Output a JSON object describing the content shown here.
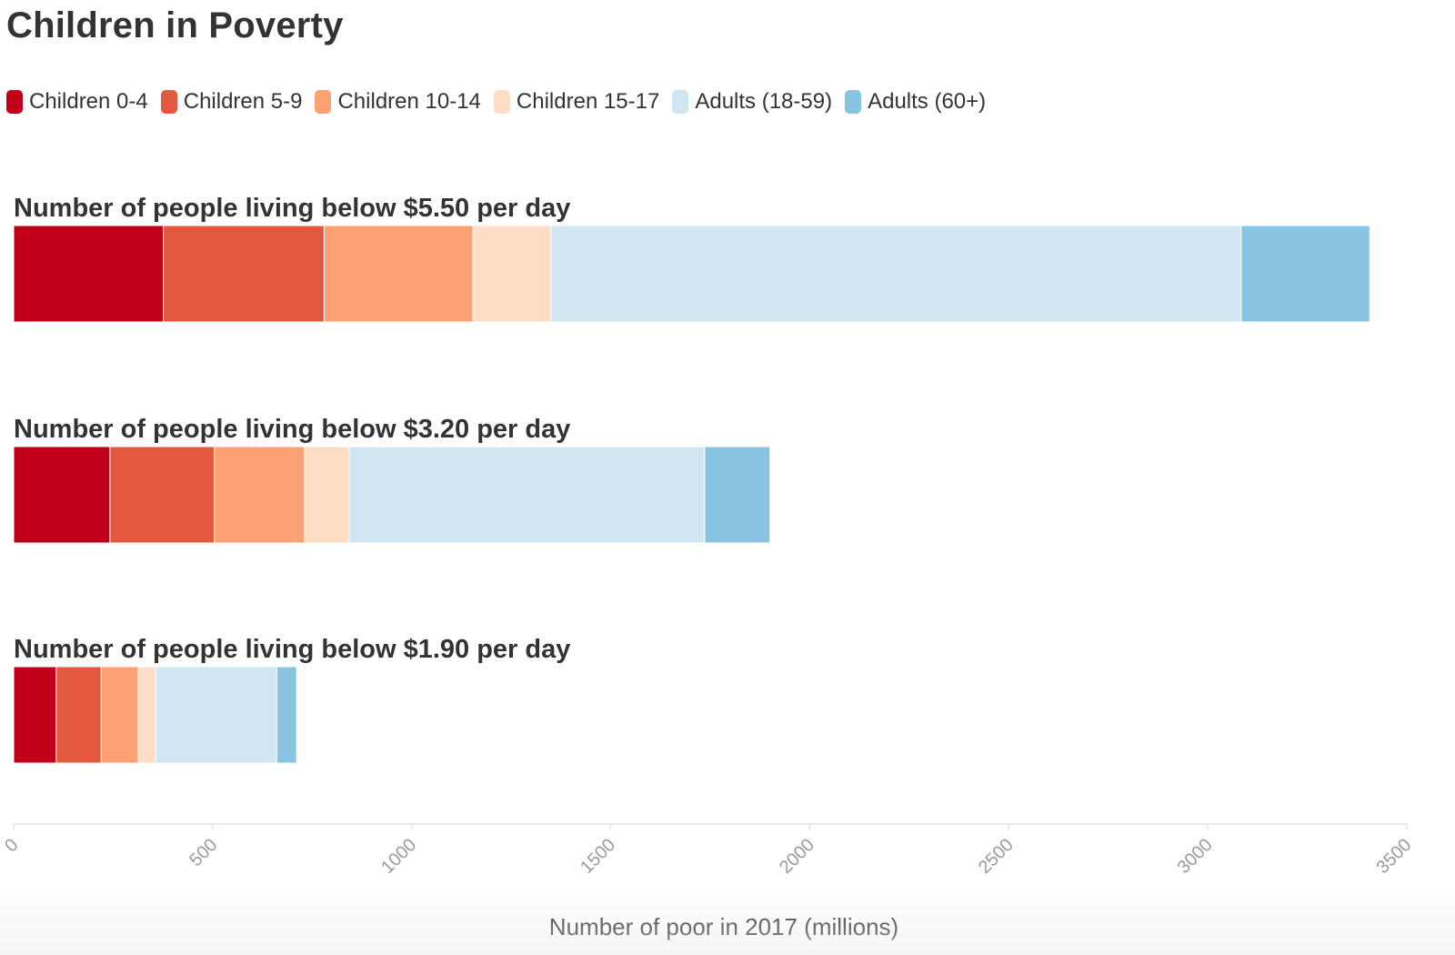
{
  "title": "Children in Poverty",
  "chart_data": {
    "type": "bar",
    "orientation": "horizontal",
    "stacked": true,
    "categories": [
      "Number of people living below $5.50 per day",
      "Number of people living below $3.20 per day",
      "Number of people living below $1.90 per day"
    ],
    "series": [
      {
        "name": "Children 0-4",
        "color": "#c0001a",
        "values": [
          376,
          242,
          107
        ]
      },
      {
        "name": "Children 5-9",
        "color": "#e3593f",
        "values": [
          404,
          262,
          113
        ]
      },
      {
        "name": "Children 10-14",
        "color": "#fda274",
        "values": [
          374,
          227,
          93
        ]
      },
      {
        "name": "Children 15-17",
        "color": "#fedcc5",
        "values": [
          196,
          112,
          44
        ]
      },
      {
        "name": "Adults (18-59)",
        "color": "#d0e6f2",
        "values": [
          1734,
          893,
          304
        ]
      },
      {
        "name": "Adults (60+)",
        "color": "#89c4e2",
        "values": [
          323,
          164,
          50
        ]
      }
    ],
    "xlabel": "Number of poor in 2017 (millions)",
    "xlim": [
      0,
      3500
    ],
    "xticks": [
      0,
      500,
      1000,
      1500,
      2000,
      2500,
      3000,
      3500
    ],
    "legend": "top-left",
    "grid": false
  }
}
